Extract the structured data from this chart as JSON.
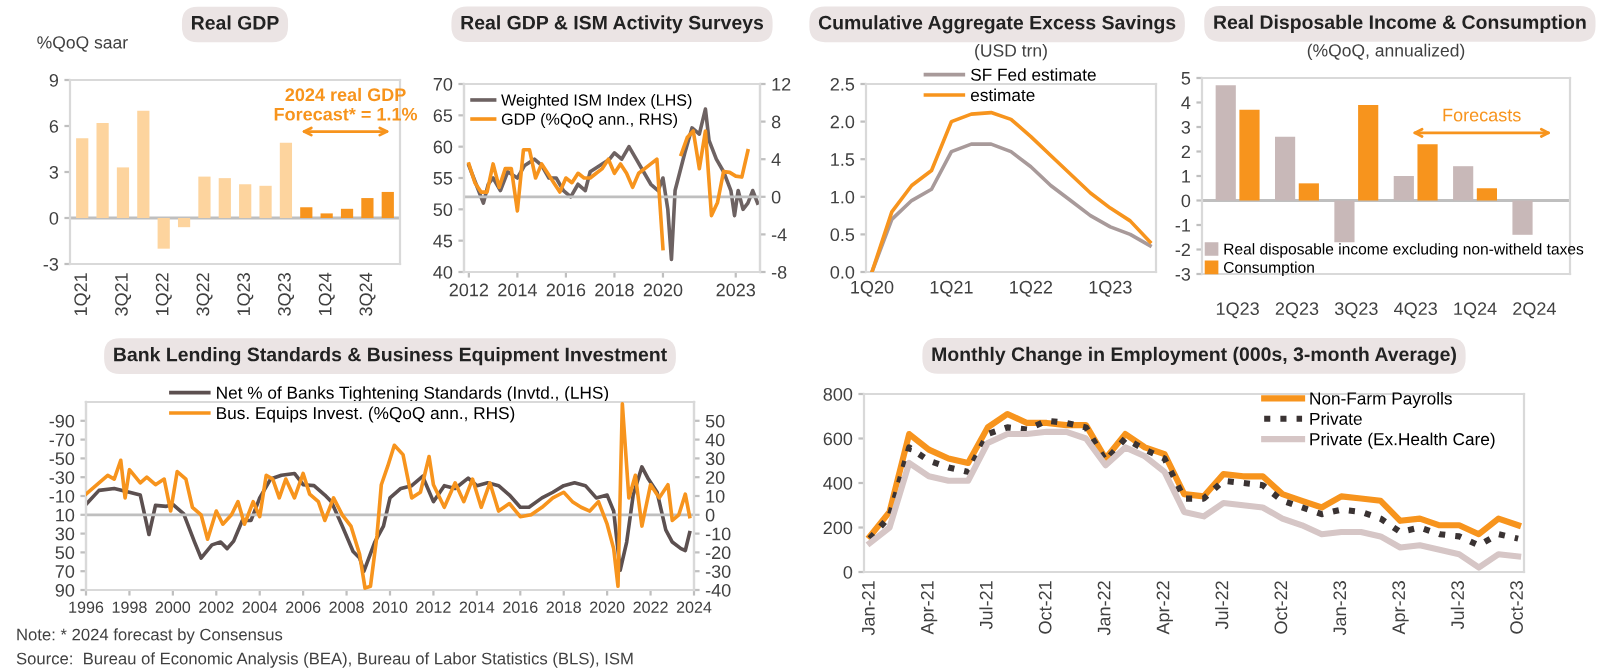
{
  "chart_data": [
    {
      "type": "bar",
      "title": "Real GDP",
      "ylabel": "%QoQ saar",
      "categories": [
        "1Q21",
        null,
        "3Q21",
        null,
        "1Q22",
        null,
        "3Q22",
        null,
        "1Q23",
        null,
        "3Q23",
        null,
        "1Q24",
        null,
        "3Q24",
        null
      ],
      "values": [
        5.2,
        6.2,
        3.3,
        7.0,
        -2.0,
        -0.6,
        2.7,
        2.6,
        2.2,
        2.1,
        4.9,
        0.7,
        0.3,
        0.6,
        1.3,
        1.7
      ],
      "colors": [
        "#fdd49e",
        "#fdd49e",
        "#fdd49e",
        "#fdd49e",
        "#fdd49e",
        "#fdd49e",
        "#fdd49e",
        "#fdd49e",
        "#fdd49e",
        "#fdd49e",
        "#fdd49e",
        "#f7941d",
        "#f7941d",
        "#f7941d",
        "#f7941d",
        "#f7941d"
      ],
      "ylim": [
        -3,
        9
      ],
      "yticks": [
        -3,
        0,
        3,
        6,
        9
      ],
      "ref_lines": [
        {
          "axis": "y",
          "value": 0,
          "color": "#bfbfbf"
        }
      ],
      "annotations": [
        "2024 real GDP\nForecast* = 1.1%"
      ],
      "legend": false
    },
    {
      "type": "line",
      "title": "Real GDP & ISM Activity Surveys",
      "series": [
        {
          "name": "Weighted ISM Index (LHS)",
          "color": "#6d6262",
          "x": [
            2012.0,
            2012.3,
            2012.6,
            2012.8,
            2013.0,
            2013.3,
            2013.6,
            2014.0,
            2014.3,
            2014.7,
            2015.0,
            2015.3,
            2015.6,
            2015.9,
            2016.2,
            2016.5,
            2016.8,
            2017.0,
            2017.4,
            2017.8,
            2018.0,
            2018.3,
            2018.6,
            2018.9,
            2019.2,
            2019.5,
            2019.8,
            2020.0,
            2020.2,
            2020.35,
            2020.5,
            2020.7,
            2020.9,
            2021.2,
            2021.5,
            2021.75,
            2021.9,
            2022.2,
            2022.5,
            2022.8,
            2022.95,
            2023.1,
            2023.3,
            2023.5,
            2023.7,
            2023.9
          ],
          "values": [
            57,
            54,
            51,
            54,
            55,
            53,
            56,
            55,
            57,
            58,
            57,
            55,
            55,
            53,
            52,
            54,
            53,
            56,
            57,
            58,
            59,
            58,
            60,
            58,
            56,
            54,
            53,
            55,
            50,
            42,
            53,
            56,
            59,
            63,
            62,
            66,
            61,
            58,
            56,
            53,
            49,
            53,
            50,
            51,
            53,
            51
          ]
        },
        {
          "name": "GDP (%QoQ ann., RHS)",
          "color": "#f7941d",
          "axis": "y2",
          "x": [
            2012.0,
            2012.25,
            2012.5,
            2012.75,
            2013.0,
            2013.25,
            2013.5,
            2013.75,
            2014.0,
            2014.25,
            2014.5,
            2014.75,
            2015.0,
            2015.25,
            2015.5,
            2015.75,
            2016.0,
            2016.25,
            2016.5,
            2016.75,
            2017.0,
            2017.25,
            2017.5,
            2017.75,
            2018.0,
            2018.25,
            2018.5,
            2018.75,
            2019.0,
            2019.25,
            2019.5,
            2019.75,
            2020.0,
            2020.25,
            2020.5,
            2020.75,
            2021.0,
            2021.25,
            2021.5,
            2021.75,
            2022.0,
            2022.25,
            2022.5,
            2022.75,
            2023.0,
            2023.25,
            2023.5
          ],
          "values": [
            3.5,
            1.5,
            0.5,
            0.5,
            3.5,
            1.0,
            3.0,
            3.0,
            -1.5,
            5.0,
            5.0,
            2.0,
            3.5,
            2.5,
            1.5,
            0.5,
            2.0,
            1.5,
            2.5,
            2.0,
            2.0,
            2.5,
            3.0,
            4.0,
            2.5,
            3.5,
            2.5,
            1.0,
            2.5,
            3.0,
            3.5,
            4.0,
            -5.5,
            null,
            null,
            4.5,
            6.3,
            7.0,
            3.0,
            7.0,
            -2.0,
            -0.6,
            2.7,
            2.6,
            2.2,
            2.1,
            4.9
          ]
        }
      ],
      "xlim": [
        2011.8,
        2024.0
      ],
      "xticks": [
        2012,
        2014,
        2016,
        2018,
        2020,
        2023
      ],
      "ylim": [
        40,
        70
      ],
      "yticks": [
        40,
        45,
        50,
        55,
        60,
        65,
        70
      ],
      "y2lim": [
        -8,
        12
      ],
      "y2ticks": [
        -8,
        -4,
        0,
        4,
        8,
        12
      ],
      "ref_lines": [
        {
          "axis": "y2",
          "value": 0,
          "color": "#bfbfbf"
        }
      ],
      "legend": "top left"
    },
    {
      "type": "line",
      "title": "Cumulative Aggregate Excess Savings",
      "subtitle": "(USD trn)",
      "categories": [
        "1Q20",
        null,
        null,
        null,
        "1Q21",
        null,
        null,
        null,
        "1Q22",
        null,
        null,
        null,
        "1Q23",
        null,
        null
      ],
      "series": [
        {
          "name": "SF Fed estimate",
          "color": "#a89a9a",
          "values": [
            0,
            0.7,
            0.95,
            1.1,
            1.6,
            1.7,
            1.7,
            1.6,
            1.4,
            1.15,
            0.95,
            0.75,
            0.6,
            0.5,
            0.35
          ]
        },
        {
          "name": "estimate",
          "color": "#f7941d",
          "values": [
            0,
            0.8,
            1.15,
            1.35,
            2.0,
            2.1,
            2.12,
            2.03,
            1.8,
            1.55,
            1.3,
            1.05,
            0.85,
            0.68,
            0.4
          ]
        }
      ],
      "ylim": [
        0,
        2.5
      ],
      "yticks": [
        {
          "value": 0,
          "label": "0.0"
        },
        0.5,
        {
          "value": 1,
          "label": "1.0"
        },
        1.5,
        {
          "value": 2,
          "label": "2.0"
        },
        2.5
      ],
      "legend": "top"
    },
    {
      "type": "bar",
      "title": "Real Disposable Income & Consumption",
      "subtitle": "(%QoQ, annualized)",
      "categories": [
        "1Q23",
        "2Q23",
        "3Q23",
        "4Q23",
        "1Q24",
        "2Q24"
      ],
      "series": [
        {
          "name": "Real disposable income excluding non-witheld taxes",
          "color": "#c8b8b8",
          "values": [
            4.7,
            2.6,
            -1.7,
            1.0,
            1.4,
            -1.4
          ]
        },
        {
          "name": "Consumption",
          "color": "#f7941d",
          "values": [
            3.7,
            0.7,
            3.9,
            2.3,
            0.5,
            0.0
          ]
        }
      ],
      "ylim": [
        -3,
        5
      ],
      "yticks": [
        -3,
        -2,
        -1,
        0,
        1,
        2,
        3,
        4,
        5
      ],
      "ref_lines": [
        {
          "axis": "y",
          "value": 0,
          "color": "#bfbfbf"
        }
      ],
      "annotations": [
        "Forecasts"
      ],
      "legend": "bottom"
    },
    {
      "type": "line",
      "title": "Bank Lending Standards & Business Equipment Investment",
      "series": [
        {
          "name": "Net % of Banks Tightening Standards (Invtd., (LHS)",
          "color": "#5c5050",
          "x": [
            1996,
            1996.6,
            1997.3,
            1998,
            1998.5,
            1998.9,
            1999.2,
            1999.7,
            2000,
            2000.5,
            2001,
            2001.3,
            2001.8,
            2002.2,
            2002.5,
            2002.8,
            2003.2,
            2003.6,
            2004,
            2004.5,
            2005,
            2005.6,
            2006,
            2006.5,
            2007,
            2007.3,
            2007.8,
            2008.3,
            2008.6,
            2008.8,
            2009.3,
            2009.7,
            2010,
            2010.5,
            2011,
            2011.5,
            2012,
            2012.5,
            2013,
            2013.6,
            2014,
            2014.5,
            2015,
            2015.5,
            2016,
            2016.4,
            2017,
            2017.5,
            2018,
            2018.5,
            2019,
            2019.5,
            2020,
            2020.3,
            2020.6,
            2020.9,
            2021.2,
            2021.6,
            2021.9,
            2022.3,
            2022.7,
            2023,
            2023.4,
            2023.6,
            2023.8
          ],
          "values": [
            -1,
            -16,
            -18,
            -14,
            -11,
            31,
            0,
            1,
            -1,
            9,
            39,
            56,
            42,
            39,
            46,
            38,
            16,
            16,
            -8,
            -28,
            -32,
            -34,
            -22,
            -21,
            -11,
            -4,
            22,
            49,
            56,
            70,
            39,
            22,
            -8,
            -18,
            -21,
            -31,
            -4,
            -21,
            -18,
            -29,
            -21,
            -24,
            -21,
            -11,
            2,
            2,
            -8,
            -14,
            -21,
            -24,
            -21,
            -8,
            -11,
            6,
            69,
            39,
            -11,
            -41,
            -28,
            -14,
            26,
            39,
            46,
            48,
            29
          ]
        },
        {
          "name": "Bus. Equips Invest. (%QoQ ann., RHS)",
          "color": "#f7941d",
          "axis": "y2",
          "x": [
            1996,
            1997,
            1997.3,
            1997.6,
            1997.8,
            1998,
            1998.5,
            1998.8,
            1999.2,
            1999.6,
            1999.9,
            2000.2,
            2000.6,
            2000.9,
            2001.3,
            2001.6,
            2002,
            2002.3,
            2002.7,
            2003,
            2003.3,
            2003.7,
            2004,
            2004.3,
            2004.6,
            2004.9,
            2005.2,
            2005.6,
            2006,
            2006.3,
            2006.7,
            2007,
            2007.4,
            2007.8,
            2008.2,
            2008.6,
            2008.85,
            2009.1,
            2009.4,
            2009.6,
            2009.9,
            2010.2,
            2010.6,
            2011,
            2011.4,
            2011.8,
            2012,
            2012.5,
            2013,
            2013.4,
            2013.8,
            2014.2,
            2014.6,
            2015,
            2015.5,
            2016,
            2016.5,
            2017,
            2017.5,
            2018,
            2018.4,
            2018.8,
            2019.2,
            2019.6,
            2020,
            2020.3,
            2020.5,
            2020.7,
            2021,
            2021.3,
            2021.6,
            2022,
            2022.4,
            2022.8,
            2023,
            2023.3,
            2023.6,
            2023.8
          ],
          "values": [
            11,
            21,
            19,
            29,
            9,
            24,
            17,
            20,
            16,
            19,
            2,
            23,
            19,
            4,
            0,
            -13,
            2,
            -5,
            0,
            7,
            -5,
            7,
            -1,
            21,
            19,
            9,
            19,
            9,
            22,
            11,
            7,
            -3,
            9,
            0,
            -6,
            -21,
            -39,
            -38,
            -11,
            16,
            26,
            37,
            32,
            9,
            12,
            31,
            16,
            4,
            17,
            7,
            19,
            4,
            17,
            2,
            6,
            -1,
            0,
            4,
            9,
            12,
            7,
            4,
            2,
            7,
            -5,
            -18,
            -38,
            59,
            9,
            21,
            -6,
            16,
            9,
            16,
            -3,
            0,
            11,
            -1
          ]
        }
      ],
      "xlim": [
        1996,
        2024
      ],
      "xticks": [
        1996,
        1998,
        2000,
        2002,
        2004,
        2006,
        2008,
        2010,
        2012,
        2014,
        2016,
        2018,
        2020,
        2022,
        2024
      ],
      "ylim": [
        90,
        -110
      ],
      "yticks": [
        -90,
        -70,
        -50,
        -30,
        -10,
        10,
        30,
        50,
        70,
        90
      ],
      "y2lim": [
        -40,
        60
      ],
      "y2ticks": [
        -40,
        -30,
        -20,
        -10,
        0,
        10,
        20,
        30,
        40,
        50
      ],
      "ref_lines": [
        {
          "axis": "y2",
          "value": 0,
          "color": "#bfbfbf"
        }
      ],
      "legend": "top",
      "annotations": [
        "Note: * 2024 forecast by Consensus",
        "Source:  Bureau of Economic Analysis (BEA), Bureau of Labor Statistics (BLS), ISM"
      ]
    },
    {
      "type": "line",
      "title": "Monthly Change in Employment (000s, 3-month Average)",
      "categories": [
        "Jan-21",
        null,
        null,
        "Apr-21",
        null,
        null,
        "Jul-21",
        null,
        null,
        "Oct-21",
        null,
        null,
        "Jan-22",
        null,
        null,
        "Apr-22",
        null,
        null,
        "Jul-22",
        null,
        null,
        "Oct-22",
        null,
        null,
        "Jan-23",
        null,
        null,
        "Apr-23",
        null,
        null,
        "Jul-23",
        null,
        null,
        "Oct-23"
      ],
      "series": [
        {
          "name": "Non-Farm Payrolls",
          "color": "#f7941d",
          "values": [
            160,
            270,
            620,
            550,
            510,
            490,
            650,
            710,
            670,
            670,
            660,
            660,
            510,
            620,
            560,
            530,
            350,
            340,
            440,
            430,
            430,
            350,
            320,
            290,
            340,
            330,
            320,
            230,
            240,
            210,
            210,
            170,
            240,
            210
          ]
        },
        {
          "name": "Private",
          "color": "#3a3333",
          "line_style": "dotted",
          "values": [
            150,
            250,
            560,
            500,
            470,
            450,
            620,
            650,
            640,
            680,
            670,
            650,
            500,
            600,
            550,
            510,
            330,
            330,
            410,
            400,
            390,
            320,
            290,
            260,
            280,
            270,
            240,
            180,
            200,
            170,
            160,
            120,
            170,
            150
          ]
        },
        {
          "name": "Private (Ex.Health Care)",
          "color": "#d6c6c6",
          "values": [
            130,
            200,
            490,
            430,
            410,
            410,
            580,
            620,
            620,
            630,
            630,
            600,
            480,
            560,
            520,
            450,
            270,
            250,
            310,
            300,
            290,
            240,
            210,
            170,
            180,
            180,
            160,
            110,
            120,
            100,
            80,
            20,
            80,
            70
          ]
        }
      ],
      "ylim": [
        0,
        800
      ],
      "yticks": [
        0,
        200,
        400,
        600,
        800
      ],
      "legend": "top right"
    }
  ]
}
